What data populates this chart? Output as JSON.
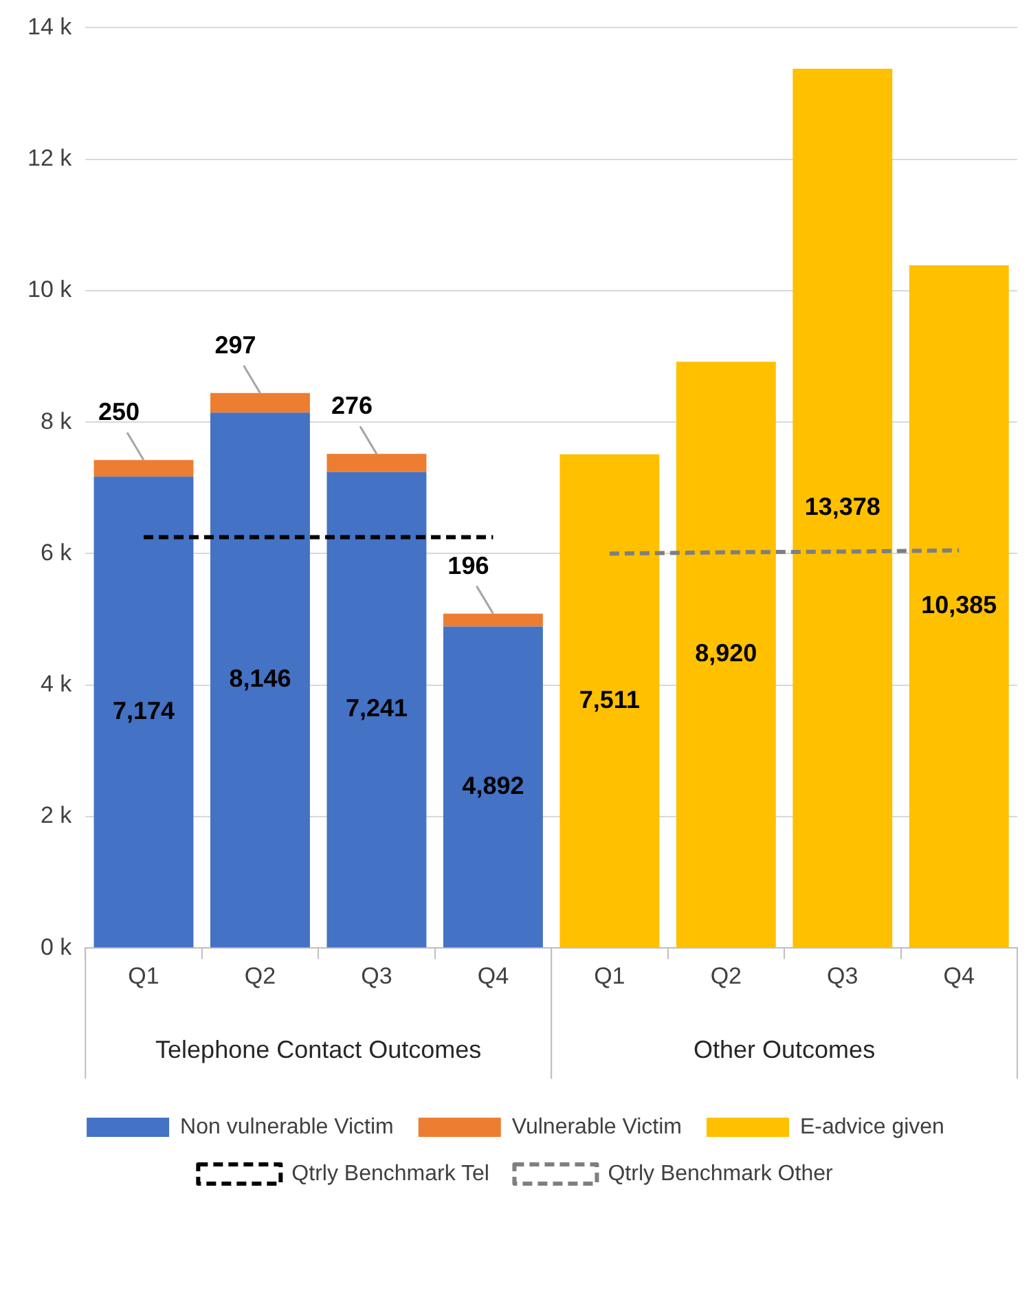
{
  "chart_data": {
    "type": "bar",
    "stacked": true,
    "categories": [
      "Q1",
      "Q2",
      "Q3",
      "Q4",
      "Q1",
      "Q2",
      "Q3",
      "Q4"
    ],
    "series": [
      {
        "name": "Non vulnerable Victim",
        "color": "#4472c4",
        "values": [
          7174,
          8146,
          7241,
          4892,
          null,
          null,
          null,
          null
        ],
        "value_labels": [
          "7,174",
          "8,146",
          "7,241",
          "4,892",
          null,
          null,
          null,
          null
        ]
      },
      {
        "name": "Vulnerable Victim",
        "color": "#ed7d31",
        "values": [
          250,
          297,
          276,
          196,
          null,
          null,
          null,
          null
        ],
        "value_labels": [
          "250",
          "297",
          "276",
          "196",
          null,
          null,
          null,
          null
        ]
      },
      {
        "name": "E-advice given",
        "color": "#ffc000",
        "values": [
          null,
          null,
          null,
          null,
          7511,
          8920,
          13378,
          10385
        ],
        "value_labels": [
          null,
          null,
          null,
          null,
          "7,511",
          "8,920",
          "13,378",
          "10,385"
        ]
      },
      {
        "name": "Qtrly Benchmark Tel",
        "type": "line",
        "color": "#000000",
        "line_style": "dashed",
        "marker": "none",
        "values": [
          6250,
          6250,
          6250,
          6250,
          null,
          null,
          null,
          null
        ]
      },
      {
        "name": "Qtrly Benchmark Other",
        "type": "line",
        "color": "#7f7f7f",
        "line_style": "dashed",
        "marker": "none",
        "values": [
          null,
          null,
          null,
          null,
          6000,
          6020,
          6030,
          6050
        ]
      }
    ],
    "ylim": [
      0,
      14000
    ],
    "yticks": [
      {
        "value": 0,
        "label": "0 k"
      },
      {
        "value": 2000,
        "label": "2 k"
      },
      {
        "value": 4000,
        "label": "4 k"
      },
      {
        "value": 6000,
        "label": "6 k"
      },
      {
        "value": 8000,
        "label": "8 k"
      },
      {
        "value": 10000,
        "label": "10 k"
      },
      {
        "value": 12000,
        "label": "12 k"
      },
      {
        "value": 14000,
        "label": "14 k"
      }
    ],
    "grid": "y",
    "legend": "bottom",
    "annotations": [
      "Telephone Contact Outcomes",
      "Other Outcomes"
    ]
  }
}
